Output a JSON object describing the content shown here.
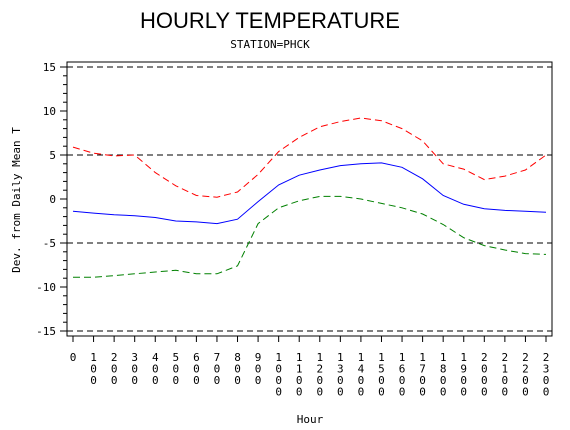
{
  "chart_data": {
    "type": "line",
    "title": "HOURLY TEMPERATURE",
    "subtitle": "STATION=PHCK",
    "xlabel": "Hour",
    "ylabel": "Dev. from Daily Mean T",
    "xlim": [
      0,
      2300
    ],
    "ylim": [
      -15,
      15
    ],
    "x": [
      0,
      100,
      200,
      300,
      400,
      500,
      600,
      700,
      800,
      900,
      1000,
      1100,
      1200,
      1300,
      1400,
      1500,
      1600,
      1700,
      1800,
      1900,
      2000,
      2100,
      2200,
      2300
    ],
    "x_tick_labels": [
      "0",
      "100",
      "200",
      "300",
      "400",
      "500",
      "600",
      "700",
      "800",
      "900",
      "1000",
      "1100",
      "1200",
      "1300",
      "1400",
      "1500",
      "1600",
      "1700",
      "1800",
      "1900",
      "2000",
      "2100",
      "2200",
      "2300"
    ],
    "y_ticks": [
      -15,
      -10,
      -5,
      0,
      5,
      10,
      15
    ],
    "reference_lines": [
      -15,
      -5,
      5,
      15
    ],
    "series": [
      {
        "color": "#ff0000",
        "dash": "dashed",
        "values": [
          5.9,
          5.2,
          4.9,
          5.0,
          3.0,
          1.5,
          0.4,
          0.2,
          0.8,
          2.8,
          5.4,
          7.0,
          8.2,
          8.8,
          9.2,
          8.9,
          8.0,
          6.6,
          4.0,
          3.4,
          2.2,
          2.6,
          3.3,
          5.0
        ]
      },
      {
        "color": "#0000ff",
        "dash": "solid",
        "values": [
          -1.4,
          -1.6,
          -1.8,
          -1.9,
          -2.1,
          -2.5,
          -2.6,
          -2.8,
          -2.3,
          -0.3,
          1.6,
          2.7,
          3.3,
          3.8,
          4.0,
          4.1,
          3.6,
          2.3,
          0.4,
          -0.6,
          -1.1,
          -1.3,
          -1.4,
          -1.5
        ]
      },
      {
        "color": "#008000",
        "dash": "dashed",
        "values": [
          -8.9,
          -8.9,
          -8.7,
          -8.5,
          -8.3,
          -8.1,
          -8.5,
          -8.5,
          -7.6,
          -2.8,
          -1.0,
          -0.2,
          0.3,
          0.3,
          0.0,
          -0.5,
          -1.0,
          -1.7,
          -2.9,
          -4.4,
          -5.3,
          -5.8,
          -6.2,
          -6.3
        ]
      }
    ]
  }
}
